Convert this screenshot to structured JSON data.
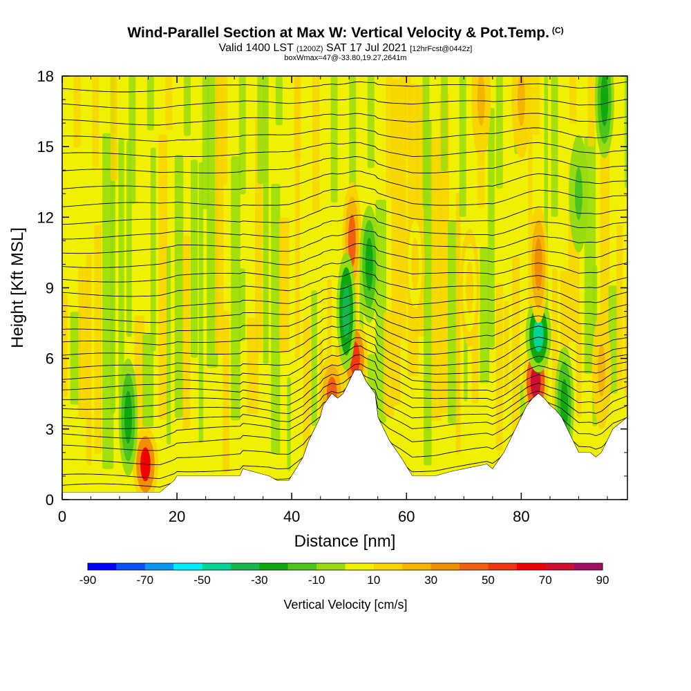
{
  "header": {
    "title": "Wind-Parallel Section at Max W: Vertical Velocity & Pot.Temp.",
    "copyright": "(C)",
    "valid_prefix": "Valid 1400 LST",
    "valid_utc": "(1200Z)",
    "valid_date": "SAT 17 Jul 2021",
    "forecast": "[12hrFcst@0442z]",
    "boxwmax": "boxWmax=47@-33.80,19.27,2641m"
  },
  "chart_data": {
    "type": "heatmap",
    "title": "Wind-Parallel Section at Max W: Vertical Velocity & Pot.Temp.",
    "xlabel": "Distance [nm]",
    "ylabel": "Height [Kft MSL]",
    "xlim": [
      0,
      98.5
    ],
    "ylim": [
      0,
      18
    ],
    "x_ticks": [
      0,
      20,
      40,
      60,
      80
    ],
    "y_ticks": [
      0,
      3,
      6,
      9,
      12,
      15,
      18
    ],
    "terrain": {
      "distance_nm": [
        0,
        8,
        10,
        15,
        17,
        19.5,
        20,
        31,
        31.5,
        36,
        37.5,
        39.5,
        40,
        42,
        43,
        45,
        45.5,
        47,
        48,
        49,
        50,
        51,
        52,
        53,
        54.5,
        55,
        57,
        59,
        61,
        65,
        68,
        70,
        74,
        75,
        77,
        79,
        80,
        81,
        82,
        83,
        84,
        85,
        86,
        87,
        88,
        89,
        90,
        91,
        92,
        93,
        94,
        95,
        96,
        98.5
      ],
      "height_kft": [
        0.3,
        0.3,
        0.3,
        0.3,
        0.3,
        0.8,
        1.0,
        1.0,
        1.3,
        1.0,
        0.8,
        0.8,
        1.0,
        1.8,
        2.5,
        3.5,
        4.0,
        4.5,
        4.3,
        4.5,
        5.0,
        5.5,
        5.5,
        5.0,
        4.5,
        3.5,
        2.5,
        1.8,
        1.0,
        1.0,
        1.2,
        1.3,
        1.5,
        1.3,
        2.0,
        3.0,
        3.5,
        4.0,
        4.3,
        4.5,
        4.3,
        4.0,
        3.8,
        3.5,
        3.0,
        2.5,
        2.0,
        2.0,
        2.0,
        1.8,
        2.0,
        2.5,
        3.0,
        3.5
      ]
    },
    "colorbar": {
      "label": "Vertical Velocity [cm/s]",
      "range": [
        -90,
        90
      ],
      "ticks": [
        "-90",
        "-70",
        "-50",
        "-30",
        "-10",
        "10",
        "30",
        "50",
        "70",
        "90"
      ],
      "colors": [
        "#0000ff",
        "#0c4ef8",
        "#0c96f4",
        "#00eaf8",
        "#00d496",
        "#14b84c",
        "#10a810",
        "#4cc41c",
        "#96dc10",
        "#f0f000",
        "#f8d400",
        "#f4b400",
        "#f09000",
        "#f06010",
        "#f03814",
        "#f00000",
        "#d01030",
        "#a01060"
      ]
    },
    "velocity_features": [
      {
        "x_nm": 14.5,
        "z_kft": 1.5,
        "w_cms": 65
      },
      {
        "x_nm": 11.5,
        "z_kft": 3.5,
        "w_cms": -25
      },
      {
        "x_nm": 47,
        "z_kft": 4.5,
        "w_cms": 45
      },
      {
        "x_nm": 51,
        "z_kft": 6,
        "w_cms": 50
      },
      {
        "x_nm": 50.5,
        "z_kft": 11,
        "w_cms": 40
      },
      {
        "x_nm": 49.5,
        "z_kft": 8,
        "w_cms": -40
      },
      {
        "x_nm": 53.5,
        "z_kft": 10,
        "w_cms": -25
      },
      {
        "x_nm": 82.5,
        "z_kft": 5,
        "w_cms": 70
      },
      {
        "x_nm": 83,
        "z_kft": 7,
        "w_cms": -50
      },
      {
        "x_nm": 83,
        "z_kft": 10,
        "w_cms": 35
      },
      {
        "x_nm": 87.5,
        "z_kft": 4,
        "w_cms": -30
      },
      {
        "x_nm": 94,
        "z_kft": 5.5,
        "w_cms": 25
      },
      {
        "x_nm": 94.5,
        "z_kft": 17,
        "w_cms": -25
      },
      {
        "x_nm": 90,
        "z_kft": 13,
        "w_cms": -15
      },
      {
        "x_nm": 73,
        "z_kft": 17,
        "w_cms": 20
      },
      {
        "x_nm": 80,
        "z_kft": 17,
        "w_cms": 25
      },
      {
        "x_nm": 61.5,
        "z_kft": 10,
        "w_cms": 15
      },
      {
        "x_nm": 71,
        "z_kft": 9,
        "w_cms": 15
      }
    ],
    "isentropes_base_kft": [
      0.5,
      0.9,
      1.3,
      1.9,
      2.5,
      3.0,
      3.4,
      3.8,
      4.2,
      4.6,
      5.0,
      5.4,
      5.8,
      6.3,
      6.8,
      7.3,
      7.8,
      8.3,
      8.9,
      9.5,
      10.1,
      10.7,
      11.3,
      11.9,
      12.6,
      13.3,
      14.0,
      14.7,
      15.4,
      16.1,
      16.8,
      17.5
    ]
  }
}
